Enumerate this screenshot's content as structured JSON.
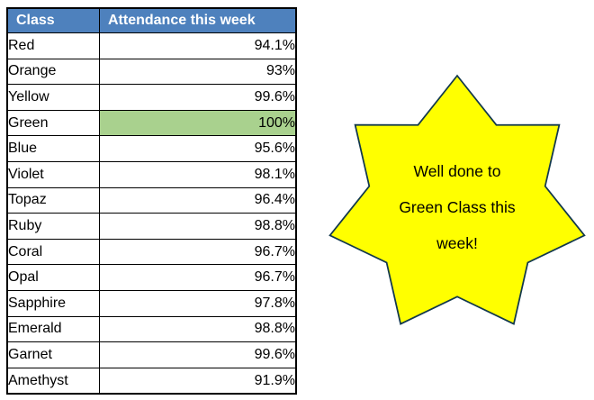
{
  "table": {
    "headers": [
      "Class",
      "Attendance this week"
    ],
    "rows": [
      {
        "class": "Red",
        "attendance": "94.1%",
        "highlight": false
      },
      {
        "class": "Orange",
        "attendance": "93%",
        "highlight": false
      },
      {
        "class": "Yellow",
        "attendance": "99.6%",
        "highlight": false
      },
      {
        "class": "Green",
        "attendance": "100%",
        "highlight": true
      },
      {
        "class": "Blue",
        "attendance": "95.6%",
        "highlight": false
      },
      {
        "class": "Violet",
        "attendance": "98.1%",
        "highlight": false
      },
      {
        "class": "Topaz",
        "attendance": "96.4%",
        "highlight": false
      },
      {
        "class": "Ruby",
        "attendance": "98.8%",
        "highlight": false
      },
      {
        "class": "Coral",
        "attendance": "96.7%",
        "highlight": false
      },
      {
        "class": "Opal",
        "attendance": "96.7%",
        "highlight": false
      },
      {
        "class": "Sapphire",
        "attendance": "97.8%",
        "highlight": false
      },
      {
        "class": "Emerald",
        "attendance": "98.8%",
        "highlight": false
      },
      {
        "class": "Garnet",
        "attendance": "99.6%",
        "highlight": false
      },
      {
        "class": "Amethyst",
        "attendance": "91.9%",
        "highlight": false
      }
    ],
    "colors": {
      "header_bg": "#4E81BD",
      "header_text": "#FFFFFF",
      "highlight_bg": "#A9D18E",
      "border": "#000000",
      "cell_text": "#000000"
    }
  },
  "star": {
    "shape": "star-7-points",
    "fill_color": "#FFFF00",
    "outline_color": "#12384C",
    "text": "Well done to Green Class this week!",
    "lines": [
      "Well done to",
      "Green Class this",
      "week!"
    ]
  }
}
